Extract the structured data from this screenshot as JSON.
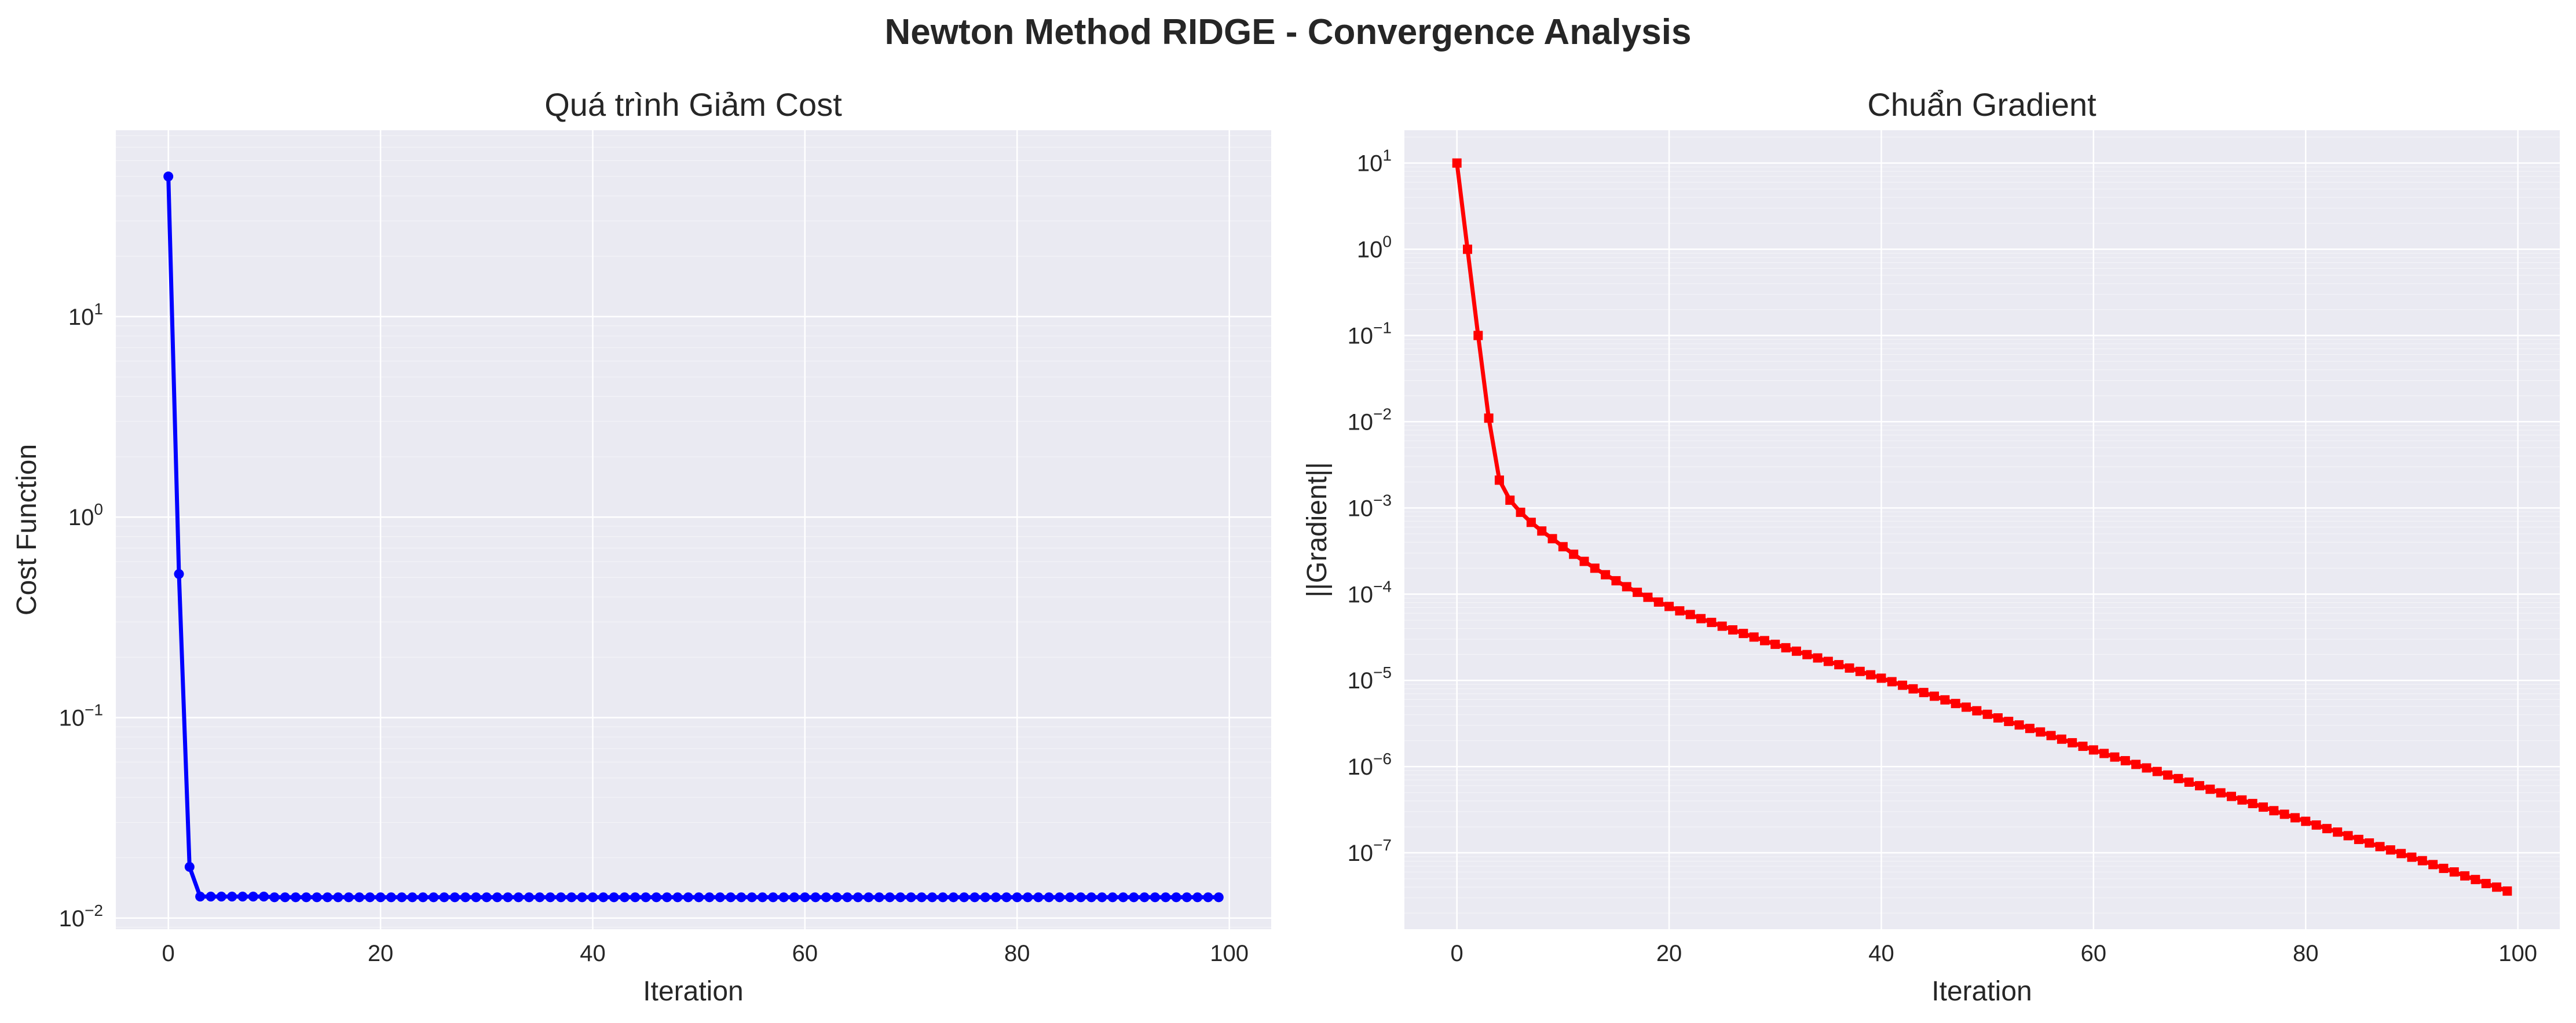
{
  "figure": {
    "suptitle": "Newton Method RIDGE - Convergence Analysis",
    "background": "#ffffff",
    "axes_facecolor": "#eaeaf2",
    "text_color": "#262626"
  },
  "chart_data": [
    {
      "type": "line",
      "title": "Quá trình Giảm Cost",
      "xlabel": "Iteration",
      "ylabel": "Cost Function",
      "yscale": "log",
      "xlim": [
        -4.95,
        103.95
      ],
      "ylim": [
        0.0088,
        85
      ],
      "xticks": [
        0,
        20,
        40,
        60,
        80,
        100
      ],
      "xtick_labels": [
        "0",
        "20",
        "40",
        "60",
        "80",
        "100"
      ],
      "yticks": [
        0.01,
        0.1,
        1,
        10
      ],
      "ytick_labels": [
        {
          "base": "10",
          "exp": "−2"
        },
        {
          "base": "10",
          "exp": "−1"
        },
        {
          "base": "10",
          "exp": "0"
        },
        {
          "base": "10",
          "exp": "1"
        }
      ],
      "grid": true,
      "marker": "circle",
      "series": [
        {
          "color": "#0000ff",
          "x_start": 0,
          "x_end": 99,
          "values": [
            50.0,
            0.52,
            0.018,
            0.0128,
            0.0128,
            0.0128,
            0.0128,
            0.0128,
            0.0128,
            0.0128,
            0.0127,
            0.0127,
            0.0127,
            0.0127,
            0.0127,
            0.0127,
            0.0127,
            0.0127,
            0.0127,
            0.0127,
            0.0127,
            0.0127,
            0.0127,
            0.0127,
            0.0127,
            0.0127,
            0.0127,
            0.0127,
            0.0127,
            0.0127,
            0.0127,
            0.0127,
            0.0127,
            0.0127,
            0.0127,
            0.0127,
            0.0127,
            0.0127,
            0.0127,
            0.0127,
            0.0127,
            0.0127,
            0.0127,
            0.0127,
            0.0127,
            0.0127,
            0.0127,
            0.0127,
            0.0127,
            0.0127,
            0.0127,
            0.0127,
            0.0127,
            0.0127,
            0.0127,
            0.0127,
            0.0127,
            0.0127,
            0.0127,
            0.0127,
            0.0127,
            0.0127,
            0.0127,
            0.0127,
            0.0127,
            0.0127,
            0.0127,
            0.0127,
            0.0127,
            0.0127,
            0.0127,
            0.0127,
            0.0127,
            0.0127,
            0.0127,
            0.0127,
            0.0127,
            0.0127,
            0.0127,
            0.0127,
            0.0127,
            0.0127,
            0.0127,
            0.0127,
            0.0127,
            0.0127,
            0.0127,
            0.0127,
            0.0127,
            0.0127,
            0.0127,
            0.0127,
            0.0127,
            0.0127,
            0.0127,
            0.0127,
            0.0127,
            0.0127,
            0.0127,
            0.0127
          ]
        }
      ]
    },
    {
      "type": "line",
      "title": "Chuẩn Gradient",
      "xlabel": "Iteration",
      "ylabel": "||Gradient||",
      "yscale": "log",
      "xlim": [
        -4.95,
        103.95
      ],
      "ylim": [
        1.3e-08,
        24
      ],
      "xticks": [
        0,
        20,
        40,
        60,
        80,
        100
      ],
      "xtick_labels": [
        "0",
        "20",
        "40",
        "60",
        "80",
        "100"
      ],
      "yticks": [
        1e-07,
        1e-06,
        1e-05,
        0.0001,
        0.001,
        0.01,
        0.1,
        1,
        10
      ],
      "ytick_labels": [
        {
          "base": "10",
          "exp": "−7"
        },
        {
          "base": "10",
          "exp": "−6"
        },
        {
          "base": "10",
          "exp": "−5"
        },
        {
          "base": "10",
          "exp": "−4"
        },
        {
          "base": "10",
          "exp": "−3"
        },
        {
          "base": "10",
          "exp": "−2"
        },
        {
          "base": "10",
          "exp": "−1"
        },
        {
          "base": "10",
          "exp": "0"
        },
        {
          "base": "10",
          "exp": "1"
        }
      ],
      "grid": true,
      "marker": "square",
      "series": [
        {
          "color": "#ff0000",
          "x_start": 0,
          "x_end": 99,
          "values": [
            10.0,
            1.0,
            0.1,
            0.011,
            0.0021,
            0.00123,
            0.00089,
            0.00068,
            0.00054,
            0.00044,
            0.000355,
            0.00029,
            0.00024,
            0.0002,
            0.000168,
            0.000143,
            0.000122,
            0.000105,
            9.2e-05,
            8.1e-05,
            7.2e-05,
            6.4e-05,
            5.8e-05,
            5.2e-05,
            4.7e-05,
            4.25e-05,
            3.85e-05,
            3.5e-05,
            3.18e-05,
            2.89e-05,
            2.62e-05,
            2.39e-05,
            2.18e-05,
            1.99e-05,
            1.82e-05,
            1.66e-05,
            1.52e-05,
            1.39e-05,
            1.27e-05,
            1.16e-05,
            1.06e-05,
            9.65e-06,
            8.78e-06,
            7.97e-06,
            7.23e-06,
            6.55e-06,
            5.94e-06,
            5.39e-06,
            4.89e-06,
            4.44e-06,
            4.04e-06,
            3.67e-06,
            3.34e-06,
            3.04e-06,
            2.77e-06,
            2.52e-06,
            2.29e-06,
            2.08e-06,
            1.89e-06,
            1.72e-06,
            1.56e-06,
            1.42e-06,
            1.29e-06,
            1.17e-06,
            1.06e-06,
            9.65e-07,
            8.78e-07,
            7.98e-07,
            7.26e-07,
            6.6e-07,
            6e-07,
            5.46e-07,
            4.96e-07,
            4.51e-07,
            4.1e-07,
            3.73e-07,
            3.39e-07,
            3.08e-07,
            2.8e-07,
            2.55e-07,
            2.32e-07,
            2.1e-07,
            1.91e-07,
            1.74e-07,
            1.58e-07,
            1.43e-07,
            1.3e-07,
            1.18e-07,
            1.08e-07,
            9.8e-08,
            8.9e-08,
            8.1e-08,
            7.3e-08,
            6.6e-08,
            6e-08,
            5.4e-08,
            4.9e-08,
            4.4e-08,
            4e-08,
            3.6e-08
          ]
        }
      ]
    }
  ]
}
